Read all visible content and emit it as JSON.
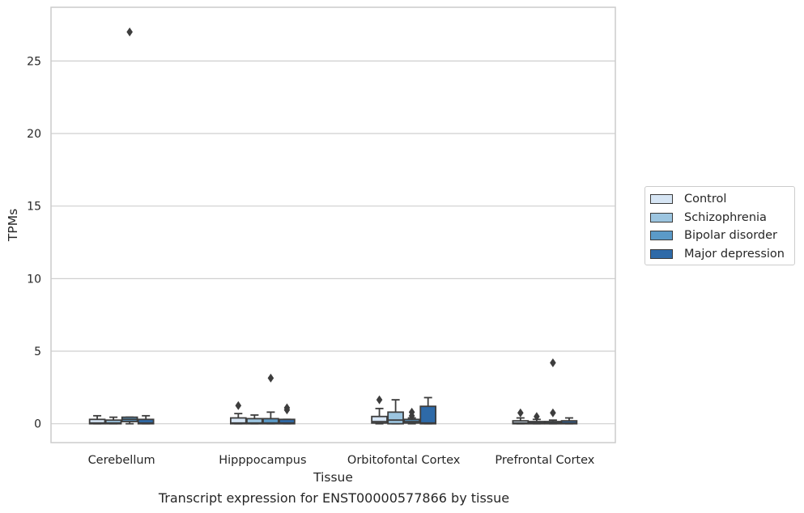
{
  "chart_data": {
    "type": "box",
    "xlabel": "Tissue",
    "ylabel": "TPMs",
    "caption": "Transcript expression for ENST00000577866 by tissue",
    "ylim": [
      -1.3,
      28.7
    ],
    "yticks": [
      0,
      5,
      10,
      15,
      20,
      25
    ],
    "grid": "horizontal",
    "legend_position": "right",
    "categories": [
      "Cerebellum",
      "Hipppocampus",
      "Orbitofontal Cortex",
      "Prefrontal Cortex"
    ],
    "series": [
      {
        "name": "Control",
        "color": "#d6e5f4",
        "boxes": [
          {
            "whislo": 0.0,
            "q1": 0.0,
            "med": 0.05,
            "q3": 0.3,
            "whishi": 0.55,
            "fliers": []
          },
          {
            "whislo": 0.0,
            "q1": 0.0,
            "med": 0.05,
            "q3": 0.4,
            "whishi": 0.7,
            "fliers": [
              1.25
            ]
          },
          {
            "whislo": 0.0,
            "q1": 0.05,
            "med": 0.15,
            "q3": 0.5,
            "whishi": 1.05,
            "fliers": [
              1.65
            ]
          },
          {
            "whislo": 0.0,
            "q1": 0.0,
            "med": 0.05,
            "q3": 0.2,
            "whishi": 0.4,
            "fliers": [
              0.75
            ]
          }
        ]
      },
      {
        "name": "Schizophrenia",
        "color": "#9cc5e0",
        "boxes": [
          {
            "whislo": 0.0,
            "q1": 0.0,
            "med": 0.05,
            "q3": 0.25,
            "whishi": 0.45,
            "fliers": []
          },
          {
            "whislo": 0.0,
            "q1": 0.0,
            "med": 0.05,
            "q3": 0.35,
            "whishi": 0.6,
            "fliers": []
          },
          {
            "whislo": 0.0,
            "q1": 0.0,
            "med": 0.25,
            "q3": 0.8,
            "whishi": 1.65,
            "fliers": []
          },
          {
            "whislo": 0.0,
            "q1": 0.0,
            "med": 0.05,
            "q3": 0.15,
            "whishi": 0.3,
            "fliers": [
              0.5
            ]
          }
        ]
      },
      {
        "name": "Bipolar disorder",
        "color": "#5b9ac8",
        "boxes": [
          {
            "whislo": 0.0,
            "q1": 0.15,
            "med": 0.3,
            "q3": 0.45,
            "whishi": 0.45,
            "fliers": [
              27.0
            ]
          },
          {
            "whislo": 0.0,
            "q1": 0.0,
            "med": 0.05,
            "q3": 0.35,
            "whishi": 0.8,
            "fliers": [
              3.15
            ]
          },
          {
            "whislo": 0.0,
            "q1": 0.05,
            "med": 0.15,
            "q3": 0.3,
            "whishi": 0.4,
            "fliers": [
              0.55,
              0.8
            ]
          },
          {
            "whislo": 0.0,
            "q1": 0.0,
            "med": 0.05,
            "q3": 0.15,
            "whishi": 0.25,
            "fliers": [
              0.75,
              4.2
            ]
          }
        ]
      },
      {
        "name": "Major depression",
        "color": "#2e6aa8",
        "boxes": [
          {
            "whislo": 0.0,
            "q1": 0.0,
            "med": 0.05,
            "q3": 0.3,
            "whishi": 0.55,
            "fliers": []
          },
          {
            "whislo": 0.0,
            "q1": 0.0,
            "med": 0.05,
            "q3": 0.3,
            "whishi": 0.3,
            "fliers": [
              0.95,
              1.1
            ]
          },
          {
            "whislo": 0.0,
            "q1": 0.0,
            "med": 0.05,
            "q3": 1.2,
            "whishi": 1.8,
            "fliers": []
          },
          {
            "whislo": 0.0,
            "q1": 0.0,
            "med": 0.05,
            "q3": 0.2,
            "whishi": 0.4,
            "fliers": []
          }
        ]
      }
    ]
  }
}
